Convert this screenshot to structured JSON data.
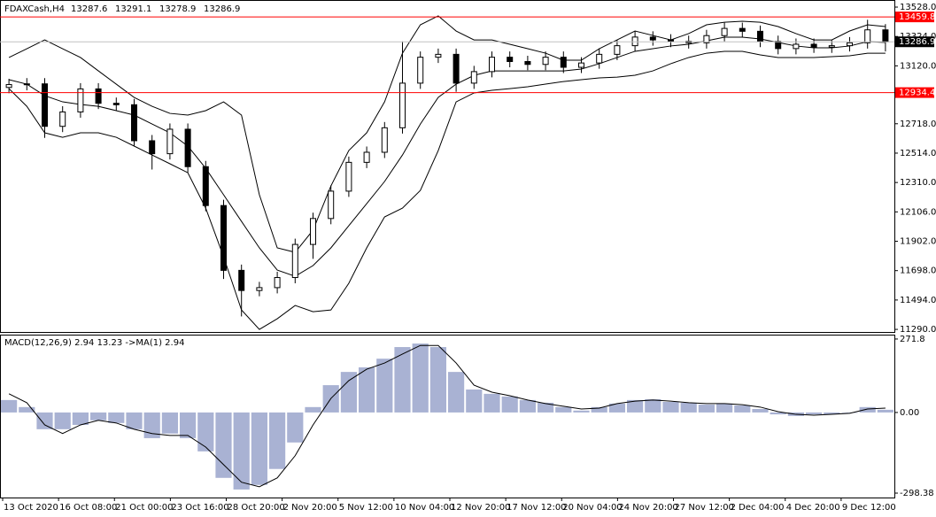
{
  "chart_data": [
    {
      "type": "candlestick",
      "title": "FDAXCash,H4",
      "header_values": [
        13287.6,
        13291.1,
        13278.9,
        13286.9
      ],
      "open": [
        12970,
        12990,
        12995,
        12700,
        12800,
        12960,
        12860,
        12850,
        12600,
        12510,
        12680,
        12420,
        12150,
        11700,
        11560,
        11580,
        11650,
        11880,
        12060,
        12250,
        12450,
        12520,
        12690,
        13000,
        13180,
        13200,
        13000,
        13080,
        13180,
        13150,
        13130,
        13180,
        13110,
        13140,
        13200,
        13260,
        13320,
        13300,
        13290,
        13280,
        13330,
        13380,
        13360,
        13290,
        13240,
        13270,
        13250,
        13260,
        13280,
        13370
      ],
      "high": [
        13030,
        13035,
        13035,
        12840,
        13000,
        13000,
        12900,
        12890,
        12640,
        12720,
        12720,
        12460,
        12190,
        11740,
        11620,
        11690,
        11920,
        12100,
        12290,
        12490,
        12560,
        12730,
        13290,
        13220,
        13240,
        13240,
        13120,
        13220,
        13220,
        13190,
        13220,
        13220,
        13180,
        13240,
        13300,
        13360,
        13360,
        13340,
        13330,
        13370,
        13420,
        13420,
        13400,
        13330,
        13310,
        13310,
        13300,
        13320,
        13440,
        13410
      ],
      "low": [
        12930,
        12950,
        12620,
        12660,
        12760,
        12820,
        12810,
        12560,
        12400,
        12470,
        12380,
        12110,
        11640,
        11380,
        11520,
        11540,
        11610,
        11780,
        12020,
        12210,
        12410,
        12480,
        12650,
        12960,
        13140,
        12940,
        12960,
        13040,
        13110,
        13090,
        13090,
        13070,
        13070,
        13100,
        13160,
        13220,
        13260,
        13250,
        13240,
        13240,
        13290,
        13320,
        13250,
        13200,
        13200,
        13210,
        13210,
        13220,
        13240,
        13220
      ],
      "close": [
        12990,
        12995,
        12700,
        12800,
        12960,
        12860,
        12850,
        12600,
        12510,
        12680,
        12420,
        12150,
        11700,
        11560,
        11580,
        11650,
        11880,
        12060,
        12250,
        12450,
        12520,
        12690,
        13000,
        13180,
        13200,
        13000,
        13080,
        13180,
        13150,
        13130,
        13180,
        13110,
        13140,
        13200,
        13260,
        13320,
        13300,
        13290,
        13280,
        13330,
        13380,
        13360,
        13290,
        13240,
        13270,
        13250,
        13260,
        13280,
        13370,
        13286.9
      ],
      "bollinger": {
        "color": "#000000",
        "upper": [
          13178,
          13239,
          13300,
          13239,
          13178,
          13085,
          12993,
          12901,
          12839,
          12790,
          12778,
          12809,
          12870,
          12778,
          12225,
          11856,
          11825,
          11979,
          12286,
          12532,
          12655,
          12870,
          13208,
          13405,
          13467,
          13362,
          13300,
          13300,
          13270,
          13239,
          13208,
          13159,
          13159,
          13239,
          13300,
          13362,
          13331,
          13300,
          13344,
          13405,
          13423,
          13430,
          13423,
          13393,
          13344,
          13300,
          13300,
          13362,
          13405,
          13393
        ],
        "middle": [
          13024,
          12993,
          12913,
          12870,
          12852,
          12839,
          12809,
          12778,
          12716,
          12655,
          12563,
          12409,
          12225,
          12040,
          11856,
          11702,
          11659,
          11733,
          11856,
          12010,
          12163,
          12317,
          12501,
          12716,
          12901,
          12993,
          13054,
          13085,
          13085,
          13085,
          13085,
          13085,
          13098,
          13135,
          13178,
          13221,
          13239,
          13258,
          13270,
          13294,
          13319,
          13319,
          13307,
          13282,
          13258,
          13245,
          13245,
          13258,
          13288,
          13282
        ],
        "lower": [
          12962,
          12839,
          12655,
          12624,
          12655,
          12655,
          12624,
          12563,
          12501,
          12440,
          12378,
          12132,
          11794,
          11425,
          11290,
          11364,
          11456,
          11413,
          11425,
          11610,
          11856,
          12071,
          12132,
          12255,
          12532,
          12870,
          12932,
          12950,
          12962,
          12975,
          12993,
          13011,
          13024,
          13036,
          13042,
          13055,
          13085,
          13135,
          13178,
          13208,
          13221,
          13221,
          13196,
          13178,
          13178,
          13178,
          13184,
          13190,
          13208,
          13208
        ]
      },
      "ylim": [
        11272,
        13565
      ],
      "yticks": [
        {
          "value": 11290,
          "label": "11290.0"
        },
        {
          "value": 11494,
          "label": "11494.0"
        },
        {
          "value": 11698,
          "label": "11698.0"
        },
        {
          "value": 11902,
          "label": "11902.0"
        },
        {
          "value": 12106,
          "label": "12106.0"
        },
        {
          "value": 12310,
          "label": "12310.0"
        },
        {
          "value": 12514,
          "label": "12514.0"
        },
        {
          "value": 12718,
          "label": "12718.0"
        },
        {
          "value": 13120,
          "label": "13120.0"
        },
        {
          "value": 13324,
          "label": "13324.0"
        },
        {
          "value": 13528,
          "label": "13528.0"
        }
      ],
      "levels": [
        13459.8,
        12934.4
      ],
      "level_color": "#ff0000",
      "current_price": 13286.9,
      "x_axis_labels": [
        "13 Oct 2020",
        "16 Oct 08:00",
        "21 Oct 00:00",
        "23 Oct 16:00",
        "28 Oct 20:00",
        "2 Nov 20:00",
        "5 Nov 12:00",
        "10 Nov 04:00",
        "12 Nov 20:00",
        "17 Nov 12:00",
        "20 Nov 04:00",
        "24 Nov 20:00",
        "27 Nov 12:00",
        "2 Dec 04:00",
        "4 Dec 20:00",
        "9 Dec 12:00"
      ]
    },
    {
      "type": "macd",
      "title": "MACD(12,26,9) 2.94 13.23  ->MA(1) 2.94",
      "histogram_color": "#a9b2d3",
      "signal_color": "#000000",
      "histogram": [
        46,
        20,
        -62,
        -62,
        -46,
        -29,
        -39,
        -62,
        -95,
        -78,
        -95,
        -144,
        -242,
        -285,
        -268,
        -209,
        -111,
        20,
        101,
        150,
        167,
        199,
        242,
        255,
        242,
        150,
        85,
        69,
        59,
        46,
        36,
        20,
        7,
        20,
        33,
        46,
        49,
        39,
        36,
        29,
        33,
        26,
        13,
        -7,
        -13,
        -7,
        -7,
        0,
        20,
        10
      ],
      "signal": [
        69,
        36,
        -46,
        -78,
        -46,
        -29,
        -39,
        -62,
        -78,
        -85,
        -85,
        -128,
        -193,
        -258,
        -275,
        -242,
        -160,
        -46,
        52,
        118,
        160,
        183,
        216,
        248,
        248,
        183,
        101,
        75,
        62,
        46,
        33,
        23,
        13,
        16,
        33,
        42,
        46,
        42,
        36,
        33,
        33,
        29,
        20,
        3,
        -7,
        -10,
        -7,
        -3,
        13,
        16
      ],
      "ylim": [
        -314.7,
        288
      ],
      "yticks": [
        -298.38,
        {
          "value": 0,
          "label": "0.00"
        },
        271.8
      ]
    }
  ]
}
